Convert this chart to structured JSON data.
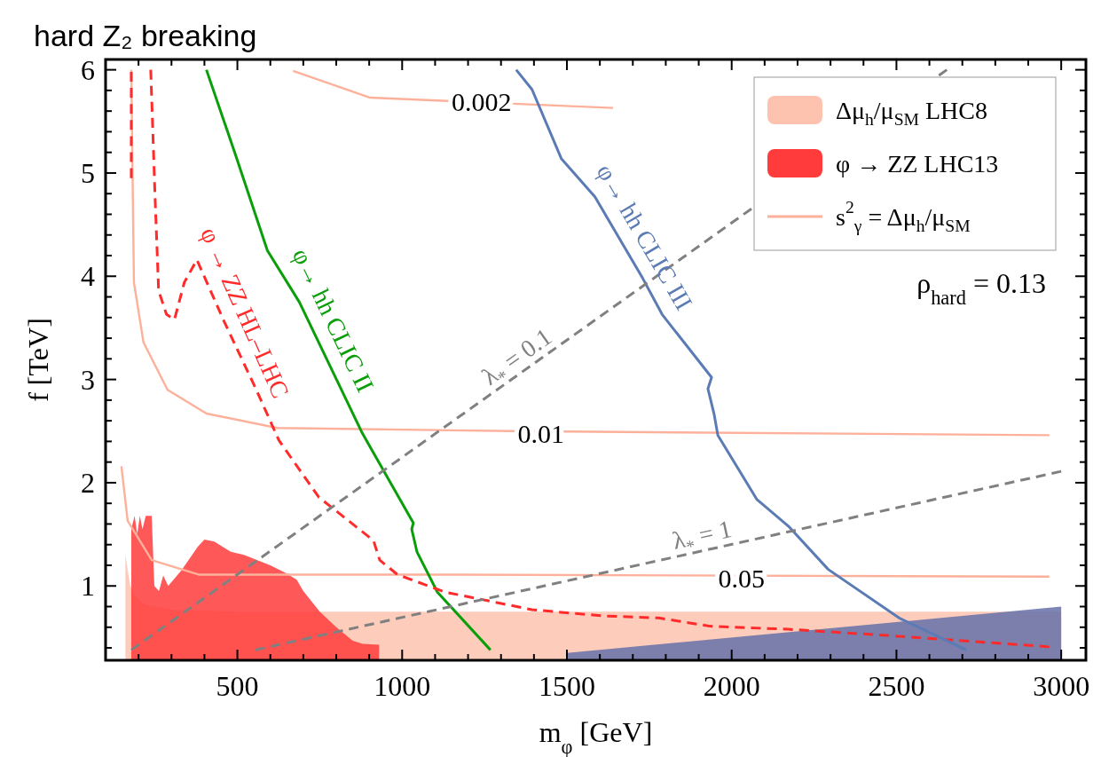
{
  "chart_data": {
    "type": "line",
    "title": "hard Z₂ breaking",
    "xlabel": "m$_{φ}$  [GeV]",
    "ylabel": "f  [TeV]",
    "xlim": [
      100,
      3075
    ],
    "ylim": [
      0.28,
      6.1
    ],
    "xticks": [
      {
        "value": 200,
        "label": null
      },
      {
        "value": 300,
        "label": null
      },
      {
        "value": 400,
        "label": null
      },
      500,
      {
        "value": 600,
        "label": null
      },
      {
        "value": 700,
        "label": null
      },
      {
        "value": 800,
        "label": null
      },
      {
        "value": 900,
        "label": null
      },
      1000,
      {
        "value": 1100,
        "label": null
      },
      {
        "value": 1200,
        "label": null
      },
      {
        "value": 1300,
        "label": null
      },
      {
        "value": 1400,
        "label": null
      },
      1500,
      {
        "value": 1600,
        "label": null
      },
      {
        "value": 1700,
        "label": null
      },
      {
        "value": 1800,
        "label": null
      },
      {
        "value": 1900,
        "label": null
      },
      2000,
      {
        "value": 2100,
        "label": null
      },
      {
        "value": 2200,
        "label": null
      },
      {
        "value": 2300,
        "label": null
      },
      {
        "value": 2400,
        "label": null
      },
      2500,
      {
        "value": 2600,
        "label": null
      },
      {
        "value": 2700,
        "label": null
      },
      {
        "value": 2800,
        "label": null
      },
      {
        "value": 2900,
        "label": null
      },
      3000
    ],
    "yticks": [
      {
        "value": 0.4,
        "label": null
      },
      {
        "value": 0.6,
        "label": null
      },
      {
        "value": 0.8,
        "label": null
      },
      1,
      {
        "value": 1.2,
        "label": null
      },
      {
        "value": 1.4,
        "label": null
      },
      {
        "value": 1.6,
        "label": null
      },
      {
        "value": 1.8,
        "label": null
      },
      2,
      {
        "value": 2.2,
        "label": null
      },
      {
        "value": 2.4,
        "label": null
      },
      {
        "value": 2.6,
        "label": null
      },
      {
        "value": 2.8,
        "label": null
      },
      3,
      {
        "value": 3.2,
        "label": null
      },
      {
        "value": 3.4,
        "label": null
      },
      {
        "value": 3.6,
        "label": null
      },
      {
        "value": 3.8,
        "label": null
      },
      4,
      {
        "value": 4.2,
        "label": null
      },
      {
        "value": 4.4,
        "label": null
      },
      {
        "value": 4.6,
        "label": null
      },
      {
        "value": 4.8,
        "label": null
      },
      5,
      {
        "value": 5.2,
        "label": null
      },
      {
        "value": 5.4,
        "label": null
      },
      {
        "value": 5.6,
        "label": null
      },
      {
        "value": 5.8,
        "label": null
      },
      6
    ],
    "grid": false,
    "legend": "top right",
    "marker": "none",
    "series": [
      {
        "type": "area",
        "name": "Δμ$_{h}$/μ$_{SM}$ LHC8",
        "color": "#fdc3ae",
        "x": [
          160,
          175,
          190,
          220,
          300,
          500,
          3000
        ],
        "values": [
          1.3,
          1.0,
          0.9,
          0.82,
          0.77,
          0.75,
          0.75
        ]
      },
      {
        "type": "area",
        "name": "φ → ZZ LHC13",
        "color": "#ff3b3b",
        "x": [
          178,
          188,
          196,
          204,
          212,
          222,
          240,
          248,
          262,
          275,
          290,
          330,
          380,
          400,
          430,
          480,
          520,
          600,
          650,
          680,
          700,
          750,
          800,
          850,
          880,
          930
        ],
        "values": [
          1.55,
          1.68,
          1.5,
          1.68,
          1.55,
          1.68,
          1.68,
          1.0,
          0.95,
          1.1,
          1.0,
          1.15,
          1.38,
          1.45,
          1.43,
          1.33,
          1.3,
          1.2,
          1.12,
          1.06,
          0.95,
          0.75,
          0.6,
          0.47,
          0.44,
          0.43
        ]
      },
      {
        "type": "area",
        "color": "#6570a8",
        "x": [
          1500,
          3000
        ],
        "values": [
          0.35,
          0.8
        ]
      },
      {
        "name": "s$^{2}$$_{γ}$ = Δμ$_{h}$/μ$_{SM}$",
        "color": "#fdb09a",
        "x": [
          669,
          903,
          1640,
          null,
          178,
          186,
          215,
          288,
          406,
          621,
          1335,
          2964,
          null,
          148,
          167,
          240,
          382,
          1131,
          2964
        ],
        "values": [
          5.99,
          5.73,
          5.63,
          null,
          6,
          3.94,
          3.36,
          2.9,
          2.67,
          2.53,
          2.5,
          2.46,
          null,
          2.16,
          1.63,
          1.25,
          1.11,
          1.11,
          1.09
        ]
      },
      {
        "color": "#0a9e0a",
        "x": [
          406,
          495,
          591,
          688,
          879,
          1034,
          1029,
          1045,
          1107,
          1268
        ],
        "values": [
          6,
          5.17,
          4.25,
          3.75,
          2.48,
          1.61,
          1.55,
          1.33,
          0.94,
          0.38
        ]
      },
      {
        "color": "#ff2a2a",
        "line_style": "dashed",
        "x": [
          178,
          178,
          null,
          237,
          250,
          261,
          285,
          309,
          339,
          377,
          460,
          556,
          626,
          747,
          913,
          932,
          986,
          1131,
          1394,
          1609,
          1778,
          1934,
          2172,
          2473,
          2964
        ],
        "values": [
          5.98,
          4.92,
          null,
          6,
          4.78,
          3.86,
          3.63,
          3.58,
          3.94,
          4.16,
          3.56,
          2.91,
          2.41,
          1.86,
          1.44,
          1.25,
          1.11,
          0.94,
          0.77,
          0.71,
          0.69,
          0.61,
          0.58,
          0.52,
          0.41
        ]
      },
      {
        "color": "#5b7bb5",
        "x": [
          1346,
          1394,
          1483,
          1585,
          1730,
          1789,
          1939,
          1928,
          1947,
          1958,
          2076,
          2172,
          2293,
          2508,
          2712
        ],
        "values": [
          6,
          5.81,
          5.14,
          4.77,
          3.98,
          3.63,
          3.02,
          2.91,
          2.66,
          2.46,
          1.84,
          1.58,
          1.16,
          0.69,
          0.38
        ]
      },
      {
        "color": "#808080",
        "line_style": "dashed",
        "x": [
          178,
          2653
        ],
        "values": [
          0.38,
          6
        ]
      },
      {
        "color": "#808080",
        "line_style": "dashed",
        "x": [
          554,
          3000
        ],
        "values": [
          0.38,
          2.11
        ]
      }
    ],
    "annotations": [
      {
        "text": "0.002",
        "x": 1241,
        "y": 5.7
      },
      {
        "text": "0.01",
        "x": 1421,
        "y": 2.48
      },
      {
        "text": "0.05",
        "x": 2030,
        "y": 1.08
      },
      {
        "text": "φ→ hh CLIC II",
        "x": 729,
        "y": 3.48
      },
      {
        "text": "φ → ZZ HL–LHC",
        "x": 460,
        "y": 3.56
      },
      {
        "text": "φ→ hh CLIC III",
        "x": 1677,
        "y": 4.27
      },
      {
        "text": "λ$_{*}$ = 0.1",
        "x": 1375,
        "y": 3.1
      },
      {
        "text": "λ$_{*}$ = 1",
        "x": 1920,
        "y": 1.35
      },
      "ρ$_{hard}$ = 0.13"
    ]
  }
}
